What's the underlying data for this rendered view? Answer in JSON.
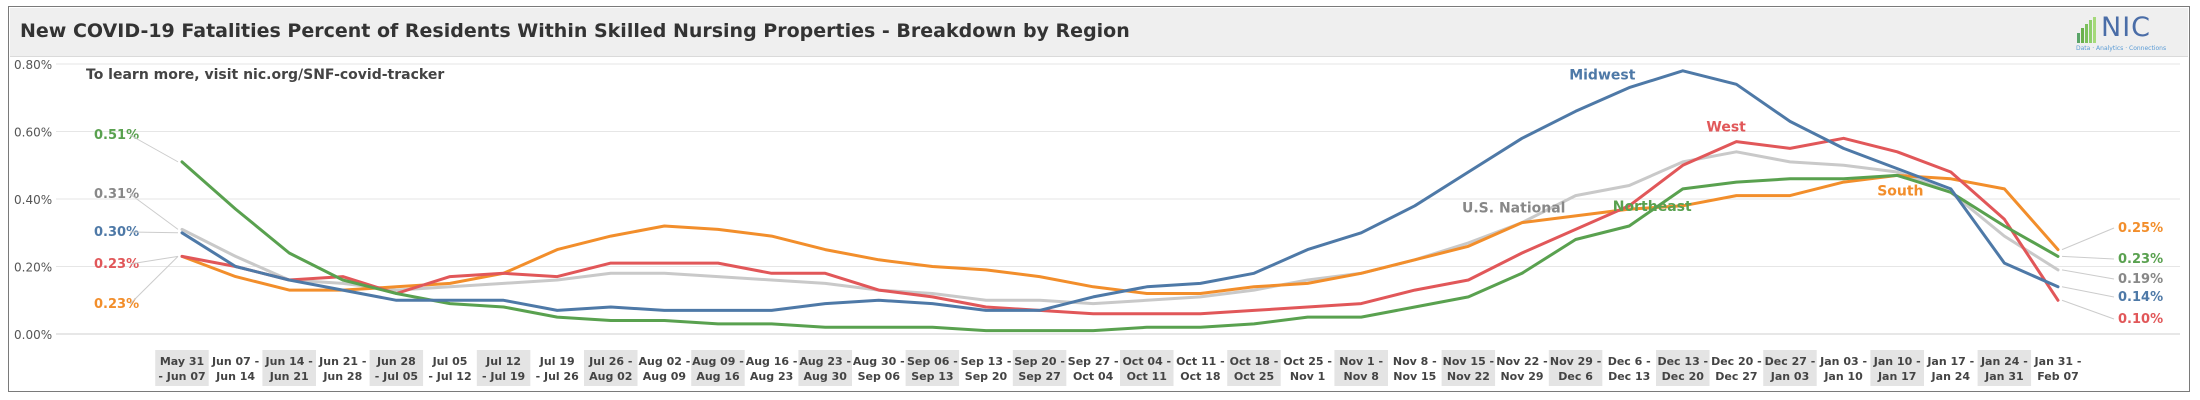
{
  "chart_data": {
    "type": "line",
    "title": "New COVID-19 Fatalities Percent of Residents Within Skilled Nursing Properties - Breakdown by Region",
    "annotation": "To learn more, visit nic.org/SNF-covid-tracker",
    "ylim": [
      0,
      0.8
    ],
    "yticks": [
      "0.00%",
      "0.20%",
      "0.40%",
      "0.60%",
      "0.80%"
    ],
    "grid": true,
    "legend": "inline labels",
    "categories": [
      [
        "May 31",
        "- Jun 07"
      ],
      [
        "Jun 07 -",
        "Jun 14"
      ],
      [
        "Jun 14 -",
        "Jun 21"
      ],
      [
        "Jun 21 -",
        "Jun 28"
      ],
      [
        "Jun 28",
        "- Jul 05"
      ],
      [
        "Jul 05",
        "- Jul 12"
      ],
      [
        "Jul 12",
        "- Jul 19"
      ],
      [
        "Jul 19",
        "- Jul 26"
      ],
      [
        "Jul 26 -",
        "Aug 02"
      ],
      [
        "Aug 02 -",
        "Aug 09"
      ],
      [
        "Aug 09 -",
        "Aug 16"
      ],
      [
        "Aug 16 -",
        "Aug 23"
      ],
      [
        "Aug 23 -",
        "Aug 30"
      ],
      [
        "Aug 30 -",
        "Sep 06"
      ],
      [
        "Sep 06 -",
        "Sep 13"
      ],
      [
        "Sep 13 -",
        "Sep 20"
      ],
      [
        "Sep 20 -",
        "Sep 27"
      ],
      [
        "Sep 27 -",
        "Oct 04"
      ],
      [
        "Oct 04 -",
        "Oct 11"
      ],
      [
        "Oct 11 -",
        "Oct 18"
      ],
      [
        "Oct 18 -",
        "Oct 25"
      ],
      [
        "Oct 25 -",
        "Nov 1"
      ],
      [
        "Nov 1 -",
        "Nov 8"
      ],
      [
        "Nov 8 -",
        "Nov 15"
      ],
      [
        "Nov 15 -",
        "Nov 22"
      ],
      [
        "Nov 22 -",
        "Nov 29"
      ],
      [
        "Nov 29 -",
        "Dec 6"
      ],
      [
        "Dec 6 -",
        "Dec 13"
      ],
      [
        "Dec 13 -",
        "Dec 20"
      ],
      [
        "Dec 20 -",
        "Dec 27"
      ],
      [
        "Dec 27 -",
        "Jan 03"
      ],
      [
        "Jan 03 -",
        "Jan 10"
      ],
      [
        "Jan 10 -",
        "Jan 17"
      ],
      [
        "Jan 17 -",
        "Jan 24"
      ],
      [
        "Jan 24 -",
        "Jan 31"
      ],
      [
        "Jan 31 -",
        "Feb 07"
      ]
    ],
    "series": [
      {
        "name": "Midwest",
        "color": "#4e79a7",
        "label_index": 27,
        "start_label": "0.30%",
        "end_label": "0.14%",
        "values": [
          0.3,
          0.2,
          0.16,
          0.13,
          0.1,
          0.1,
          0.1,
          0.07,
          0.08,
          0.07,
          0.07,
          0.07,
          0.09,
          0.1,
          0.09,
          0.07,
          0.07,
          0.11,
          0.14,
          0.15,
          0.18,
          0.25,
          0.3,
          0.38,
          0.48,
          0.58,
          0.66,
          0.73,
          0.78,
          0.74,
          0.63,
          0.55,
          0.49,
          0.43,
          0.21,
          0.14
        ]
      },
      {
        "name": "West",
        "color": "#e15759",
        "label_index": 29,
        "start_label": "0.23%",
        "end_label": "0.10%",
        "values": [
          0.23,
          0.2,
          0.16,
          0.17,
          0.12,
          0.17,
          0.18,
          0.17,
          0.21,
          0.21,
          0.21,
          0.18,
          0.18,
          0.13,
          0.11,
          0.08,
          0.07,
          0.06,
          0.06,
          0.06,
          0.07,
          0.08,
          0.09,
          0.13,
          0.16,
          0.24,
          0.31,
          0.38,
          0.5,
          0.57,
          0.55,
          0.58,
          0.54,
          0.48,
          0.34,
          0.1
        ]
      },
      {
        "name": "U.S. National",
        "color": "#c9c9c9",
        "label_index": 25,
        "start_label": "0.31%",
        "end_label": "0.19%",
        "values": [
          0.31,
          0.23,
          0.16,
          0.15,
          0.13,
          0.14,
          0.15,
          0.16,
          0.18,
          0.18,
          0.17,
          0.16,
          0.15,
          0.13,
          0.12,
          0.1,
          0.1,
          0.09,
          0.1,
          0.11,
          0.13,
          0.16,
          0.18,
          0.22,
          0.27,
          0.33,
          0.41,
          0.44,
          0.51,
          0.54,
          0.51,
          0.5,
          0.48,
          0.42,
          0.29,
          0.19
        ]
      },
      {
        "name": "South",
        "color": "#f28e2b",
        "label_index": 32,
        "start_label": "0.23%",
        "end_label": "0.25%",
        "values": [
          0.23,
          0.17,
          0.13,
          0.13,
          0.14,
          0.15,
          0.18,
          0.25,
          0.29,
          0.32,
          0.31,
          0.29,
          0.25,
          0.22,
          0.2,
          0.19,
          0.17,
          0.14,
          0.12,
          0.12,
          0.14,
          0.15,
          0.18,
          0.22,
          0.26,
          0.33,
          0.35,
          0.37,
          0.38,
          0.41,
          0.41,
          0.45,
          0.47,
          0.46,
          0.43,
          0.25
        ]
      },
      {
        "name": "Northeast",
        "color": "#59a14f",
        "label_index": 28,
        "start_label": "0.51%",
        "end_label": "0.23%",
        "values": [
          0.51,
          0.37,
          0.24,
          0.16,
          0.12,
          0.09,
          0.08,
          0.05,
          0.04,
          0.04,
          0.03,
          0.03,
          0.02,
          0.02,
          0.02,
          0.01,
          0.01,
          0.01,
          0.02,
          0.02,
          0.03,
          0.05,
          0.05,
          0.08,
          0.11,
          0.18,
          0.28,
          0.32,
          0.43,
          0.45,
          0.46,
          0.46,
          0.47,
          0.42,
          0.32,
          0.23
        ]
      }
    ]
  },
  "logo": {
    "text": "NIC",
    "tagline": "Data · Analytics · Connections"
  }
}
